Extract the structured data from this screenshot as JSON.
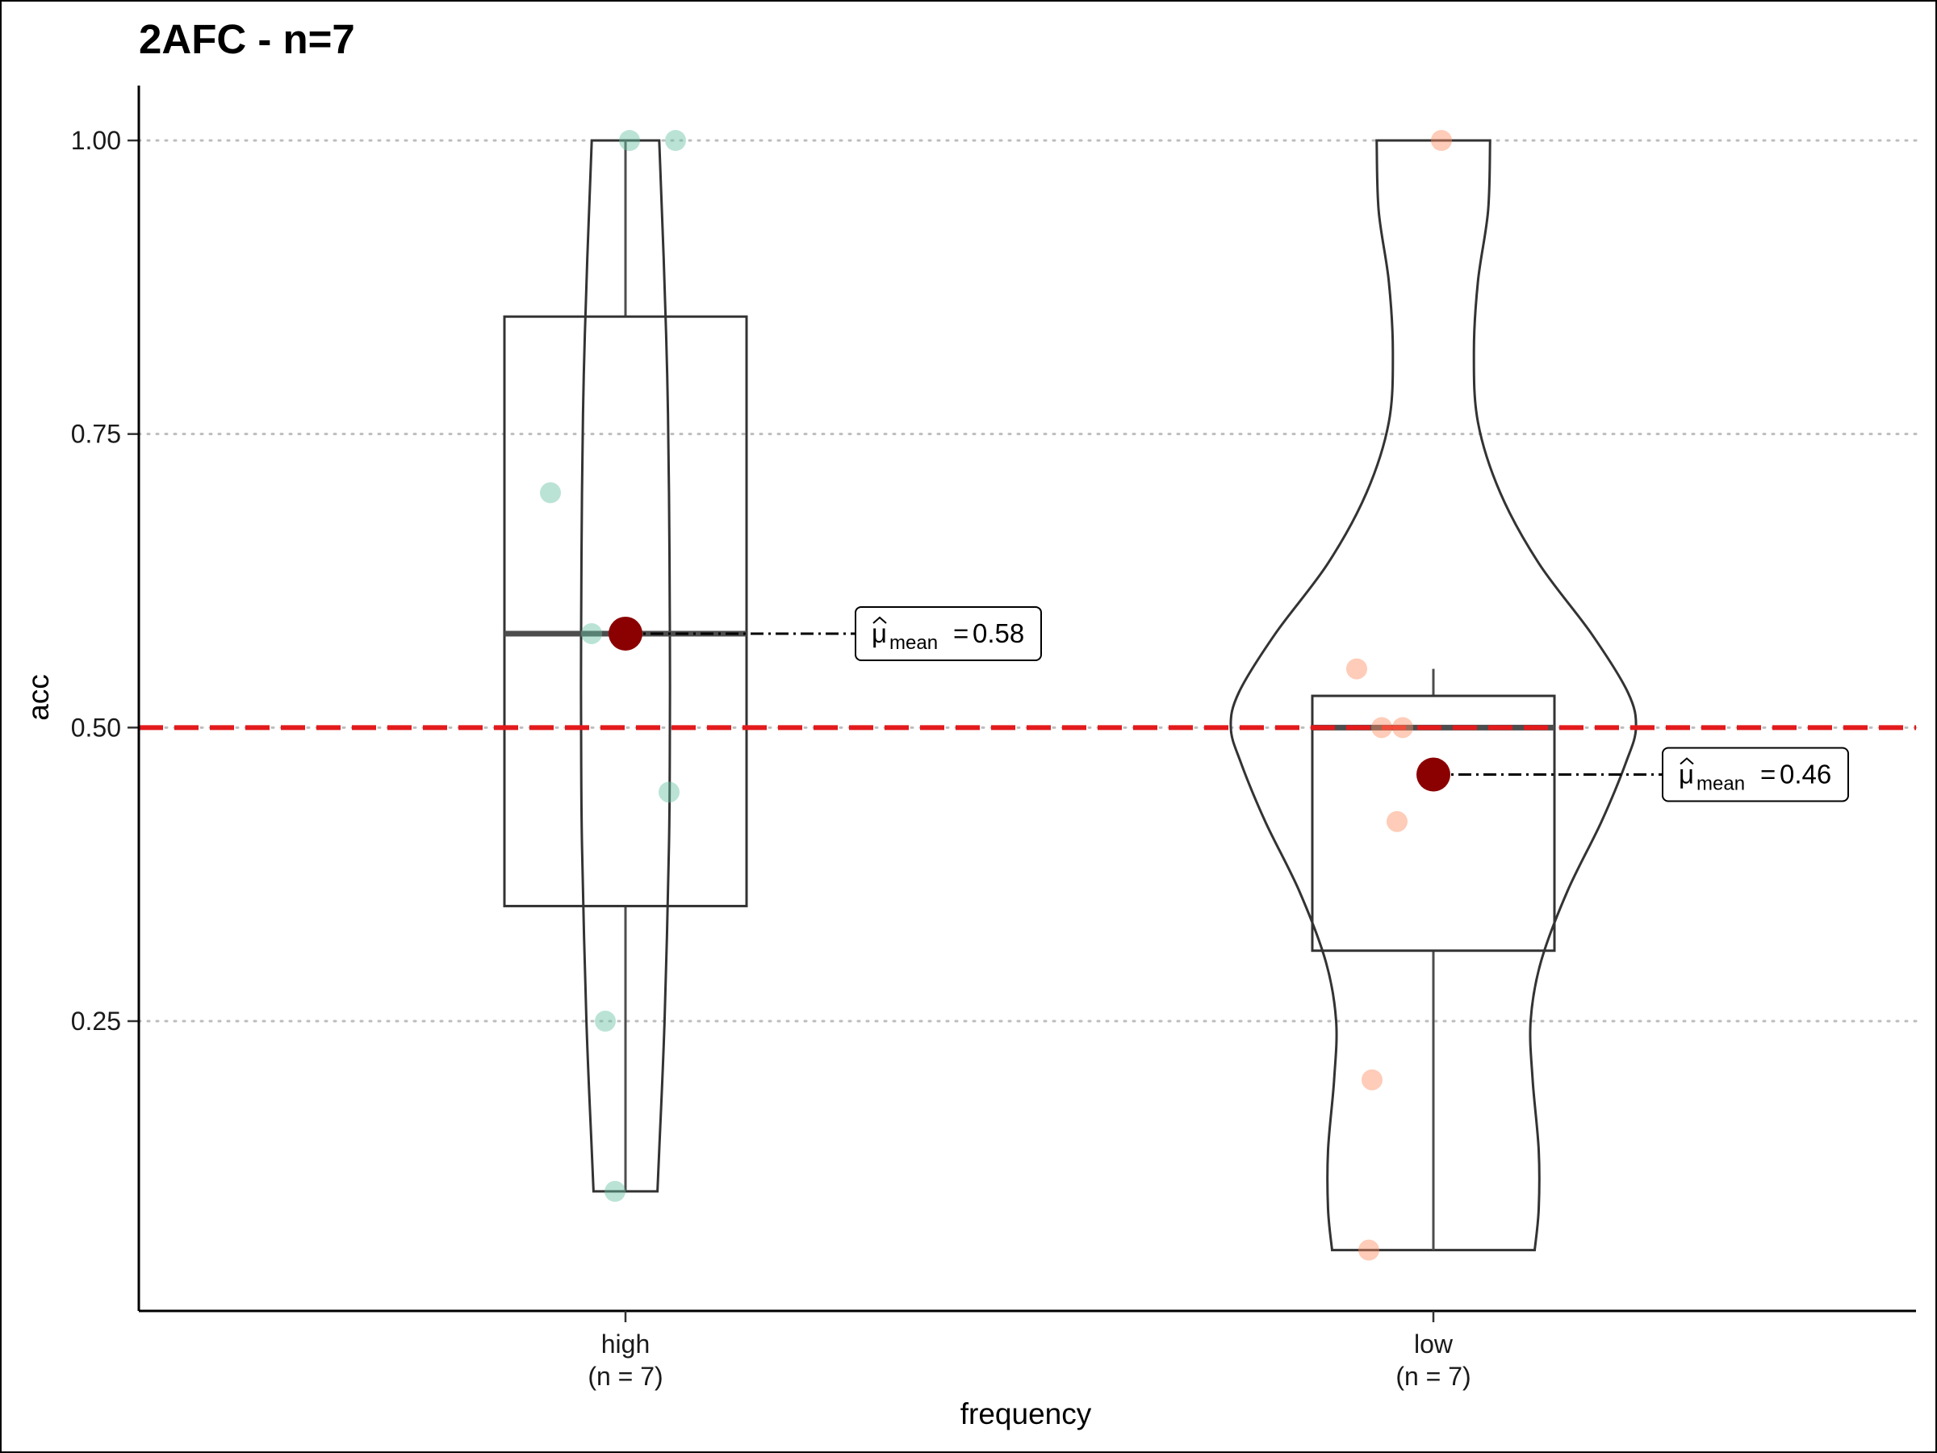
{
  "chart_data": {
    "type": "violin-box",
    "title": "2AFC - n=7",
    "xlabel": "frequency",
    "ylabel": "acc",
    "ylim": [
      0.045,
      1.07
    ],
    "yticks": [
      0.25,
      0.5,
      0.75,
      1.0
    ],
    "ytick_labels": [
      "0.25",
      "0.50",
      "0.75",
      "1.00"
    ],
    "grid": "horizontal dotted",
    "reference_line": {
      "y": 0.5,
      "color": "#e31a1c",
      "style": "dashed"
    },
    "mean_color": "#8b0000",
    "mean_symbol": "μ",
    "mean_subscript": "mean",
    "groups": [
      {
        "category": "high",
        "n_label": "(n = 7)",
        "color": "#66c2a5",
        "points": [
          1.0,
          1.0,
          0.7,
          0.58,
          0.445,
          0.25,
          0.105
        ],
        "box": {
          "q1": 0.348,
          "median": 0.58,
          "q3": 0.85,
          "whisker_low": 0.105,
          "whisker_high": 1.0
        },
        "mean": 0.58,
        "mean_label": "0.58",
        "violin": [
          {
            "y": 0.105,
            "w": 0.36
          },
          {
            "y": 0.14,
            "w": 0.38
          },
          {
            "y": 0.25,
            "w": 0.44
          },
          {
            "y": 0.4,
            "w": 0.49
          },
          {
            "y": 0.5,
            "w": 0.5
          },
          {
            "y": 0.58,
            "w": 0.5
          },
          {
            "y": 0.7,
            "w": 0.49
          },
          {
            "y": 0.8,
            "w": 0.47
          },
          {
            "y": 0.9,
            "w": 0.43
          },
          {
            "y": 0.96,
            "w": 0.4
          },
          {
            "y": 1.0,
            "w": 0.38
          }
        ]
      },
      {
        "category": "low",
        "n_label": "(n = 7)",
        "color": "#fc8d62",
        "points": [
          1.0,
          0.55,
          0.5,
          0.5,
          0.42,
          0.2,
          0.055
        ],
        "box": {
          "q1": 0.31,
          "median": 0.5,
          "q3": 0.527,
          "whisker_low": 0.055,
          "whisker_high": 0.55
        },
        "mean": 0.46,
        "mean_label": "0.46",
        "violin": [
          {
            "y": 0.055,
            "w": 0.5
          },
          {
            "y": 0.09,
            "w": 0.52
          },
          {
            "y": 0.14,
            "w": 0.52
          },
          {
            "y": 0.2,
            "w": 0.49
          },
          {
            "y": 0.25,
            "w": 0.48
          },
          {
            "y": 0.3,
            "w": 0.53
          },
          {
            "y": 0.36,
            "w": 0.66
          },
          {
            "y": 0.42,
            "w": 0.83
          },
          {
            "y": 0.47,
            "w": 0.95
          },
          {
            "y": 0.5,
            "w": 1.0
          },
          {
            "y": 0.53,
            "w": 0.96
          },
          {
            "y": 0.58,
            "w": 0.78
          },
          {
            "y": 0.64,
            "w": 0.52
          },
          {
            "y": 0.7,
            "w": 0.33
          },
          {
            "y": 0.76,
            "w": 0.22
          },
          {
            "y": 0.82,
            "w": 0.2
          },
          {
            "y": 0.88,
            "w": 0.22
          },
          {
            "y": 0.94,
            "w": 0.27
          },
          {
            "y": 1.0,
            "w": 0.28
          }
        ]
      }
    ]
  }
}
